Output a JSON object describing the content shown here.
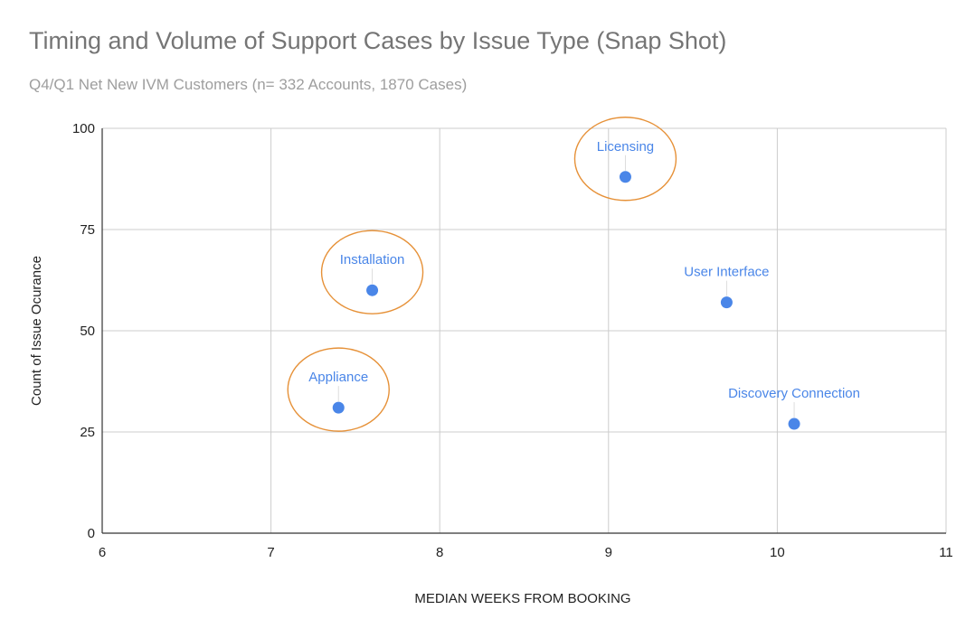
{
  "chart_data": {
    "type": "scatter",
    "title": "Timing and Volume of Support Cases by Issue Type (Snap Shot)",
    "subtitle": "Q4/Q1 Net New IVM Customers (n= 332 Accounts, 1870 Cases)",
    "xlabel": "MEDIAN WEEKS FROM BOOKING",
    "ylabel": "Count of Issue Ocurance",
    "xlim": [
      6,
      11
    ],
    "ylim": [
      0,
      100
    ],
    "xticks": [
      6,
      7,
      8,
      9,
      10,
      11
    ],
    "yticks": [
      0,
      25,
      50,
      75,
      100
    ],
    "grid": true,
    "legend": "none",
    "points": [
      {
        "label": "Licensing",
        "x": 9.1,
        "y": 88,
        "highlighted": true
      },
      {
        "label": "Installation",
        "x": 7.6,
        "y": 60,
        "highlighted": true
      },
      {
        "label": "User Interface",
        "x": 9.7,
        "y": 57,
        "highlighted": false
      },
      {
        "label": "Appliance",
        "x": 7.4,
        "y": 31,
        "highlighted": true
      },
      {
        "label": "Discovery Connection",
        "x": 10.1,
        "y": 27,
        "highlighted": false
      }
    ],
    "colors": {
      "point": "#4a86e8",
      "label": "#4a86e8",
      "highlight": "#e69138",
      "grid": "#cccccc",
      "axis": "#333333"
    }
  }
}
